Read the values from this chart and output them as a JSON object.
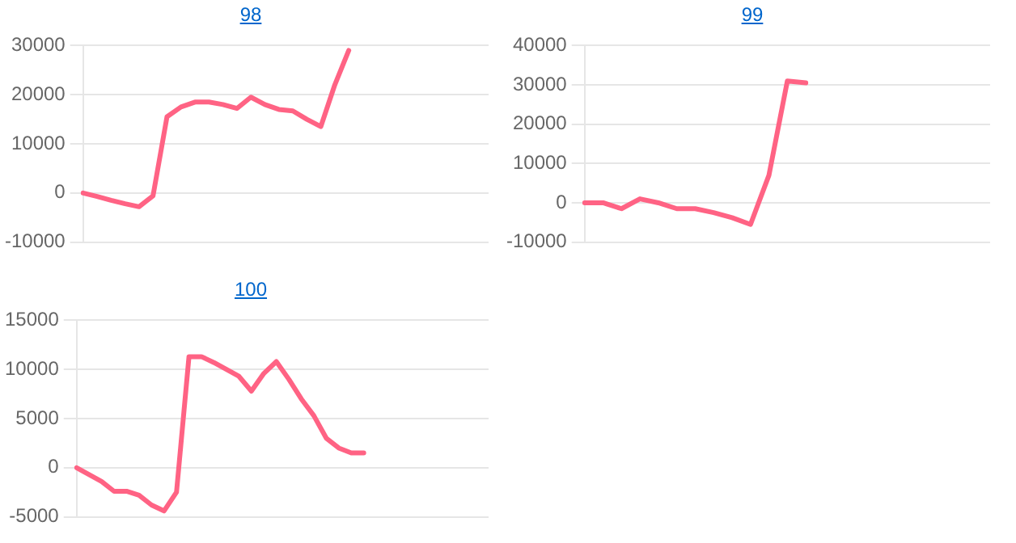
{
  "chart_data": [
    {
      "type": "line",
      "title": "98",
      "categories": [
        null,
        null,
        null,
        null,
        null,
        null,
        null,
        null,
        null,
        null,
        null,
        null,
        null,
        null,
        null,
        null,
        null,
        null,
        null,
        null,
        null,
        null,
        null,
        null,
        null,
        null,
        null,
        null,
        null,
        null
      ],
      "series": [
        {
          "color": "#ff6384",
          "values": [
            0,
            -700,
            -1500,
            -2200,
            -2800,
            -600,
            15500,
            17500,
            18500,
            18500,
            18000,
            17200,
            19500,
            18000,
            17000,
            16700,
            15000,
            13500,
            22000,
            29000,
            null,
            null,
            null,
            null,
            null,
            null,
            null,
            null,
            null,
            null
          ]
        }
      ],
      "ylim": [
        -10000,
        30000
      ],
      "yticks": [
        -10000,
        0,
        10000,
        20000,
        30000
      ],
      "grid": "y",
      "tick_labels": "y",
      "marker": "none",
      "line_style": "solid"
    },
    {
      "type": "line",
      "title": "99",
      "categories": [
        null,
        null,
        null,
        null,
        null,
        null,
        null,
        null,
        null,
        null,
        null,
        null,
        null,
        null,
        null,
        null,
        null,
        null,
        null,
        null,
        null,
        null,
        null
      ],
      "series": [
        {
          "color": "#ff6384",
          "values": [
            0,
            0,
            -1500,
            1000,
            0,
            -1500,
            -1500,
            -2500,
            -3800,
            -5500,
            7000,
            31000,
            30500,
            null,
            null,
            null,
            null,
            null,
            null,
            null,
            null,
            null,
            null
          ]
        }
      ],
      "ylim": [
        -10000,
        40000
      ],
      "yticks": [
        -10000,
        0,
        10000,
        20000,
        30000,
        40000
      ],
      "grid": "y",
      "tick_labels": "y",
      "marker": "none",
      "line_style": "solid"
    },
    {
      "type": "line",
      "title": "100",
      "categories": [
        null,
        null,
        null,
        null,
        null,
        null,
        null,
        null,
        null,
        null,
        null,
        null,
        null,
        null,
        null,
        null,
        null,
        null,
        null,
        null,
        null,
        null,
        null,
        null,
        null,
        null,
        null,
        null,
        null,
        null,
        null,
        null,
        null,
        null
      ],
      "series": [
        {
          "color": "#ff6384",
          "values": [
            0,
            -700,
            -1400,
            -2400,
            -2400,
            -2800,
            -3800,
            -4400,
            -2500,
            11300,
            11300,
            10700,
            10000,
            9300,
            7800,
            9600,
            10800,
            9000,
            7000,
            5300,
            3000,
            2000,
            1500,
            1500,
            null,
            null,
            null,
            null,
            null,
            null,
            null,
            null,
            null,
            null
          ]
        }
      ],
      "ylim": [
        -5000,
        15000
      ],
      "yticks": [
        -5000,
        0,
        5000,
        10000,
        15000
      ],
      "grid": "y",
      "tick_labels": "y",
      "marker": "none",
      "line_style": "solid"
    }
  ]
}
